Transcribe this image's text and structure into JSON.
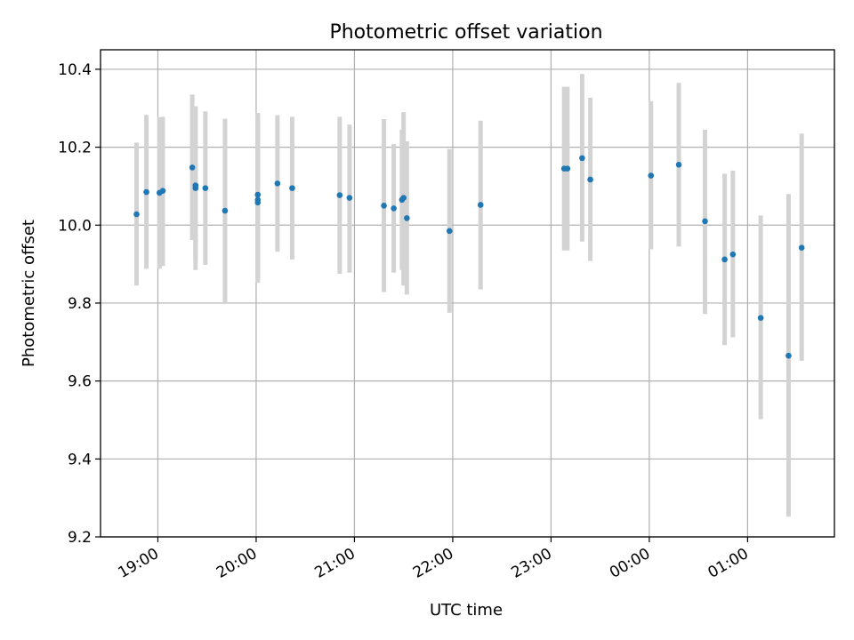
{
  "chart_data": {
    "type": "scatter",
    "title": "Photometric offset variation",
    "xlabel": "UTC time",
    "ylabel": "Photometric offset",
    "ylim": [
      9.2,
      10.45
    ],
    "xlim": [
      "18:25",
      "25:53"
    ],
    "grid": true,
    "x_axis_format": "HH:MM (UTC, continuing past midnight)",
    "x_ticks": [
      "19:00",
      "20:00",
      "21:00",
      "22:00",
      "23:00",
      "00:00",
      "01:00"
    ],
    "y_ticks": [
      "9.2",
      "9.4",
      "9.6",
      "9.8",
      "10.0",
      "10.2",
      "10.4"
    ],
    "colors": {
      "points": "#1f77b4",
      "error_bars": "#d3d3d3"
    },
    "points": [
      {
        "time": "18:47",
        "y": 10.028,
        "lo": 9.845,
        "hi": 10.212
      },
      {
        "time": "18:53",
        "y": 10.085,
        "lo": 9.888,
        "hi": 10.283
      },
      {
        "time": "19:01",
        "y": 10.083,
        "lo": 9.888,
        "hi": 10.277
      },
      {
        "time": "19:03",
        "y": 10.088,
        "lo": 9.895,
        "hi": 10.278
      },
      {
        "time": "19:21",
        "y": 10.148,
        "lo": 9.962,
        "hi": 10.335
      },
      {
        "time": "19:23",
        "y": 10.102,
        "lo": 9.915,
        "hi": 10.305
      },
      {
        "time": "19:23",
        "y": 10.095,
        "lo": 9.885,
        "hi": 10.305
      },
      {
        "time": "19:29",
        "y": 10.095,
        "lo": 9.898,
        "hi": 10.292
      },
      {
        "time": "19:41",
        "y": 10.037,
        "lo": 9.8,
        "hi": 10.273
      },
      {
        "time": "20:01",
        "y": 10.078,
        "lo": 9.852,
        "hi": 10.288
      },
      {
        "time": "20:01",
        "y": 10.058,
        "lo": 9.862,
        "hi": 10.285
      },
      {
        "time": "20:01",
        "y": 10.065,
        "lo": 9.87,
        "hi": 10.28
      },
      {
        "time": "20:13",
        "y": 10.107,
        "lo": 9.932,
        "hi": 10.282
      },
      {
        "time": "20:22",
        "y": 10.095,
        "lo": 9.912,
        "hi": 10.278
      },
      {
        "time": "20:51",
        "y": 10.077,
        "lo": 9.875,
        "hi": 10.278
      },
      {
        "time": "20:57",
        "y": 10.07,
        "lo": 9.878,
        "hi": 10.258
      },
      {
        "time": "21:18",
        "y": 10.05,
        "lo": 9.828,
        "hi": 10.272
      },
      {
        "time": "21:24",
        "y": 10.043,
        "lo": 9.878,
        "hi": 10.208
      },
      {
        "time": "21:29",
        "y": 10.065,
        "lo": 9.885,
        "hi": 10.245
      },
      {
        "time": "21:30",
        "y": 10.07,
        "lo": 9.845,
        "hi": 10.29
      },
      {
        "time": "21:32",
        "y": 10.018,
        "lo": 9.822,
        "hi": 10.215
      },
      {
        "time": "21:58",
        "y": 9.985,
        "lo": 9.775,
        "hi": 10.195
      },
      {
        "time": "22:17",
        "y": 10.052,
        "lo": 9.835,
        "hi": 10.268
      },
      {
        "time": "23:08",
        "y": 10.145,
        "lo": 9.935,
        "hi": 10.355
      },
      {
        "time": "23:10",
        "y": 10.145,
        "lo": 9.935,
        "hi": 10.355
      },
      {
        "time": "23:19",
        "y": 10.172,
        "lo": 9.958,
        "hi": 10.388
      },
      {
        "time": "23:24",
        "y": 10.117,
        "lo": 9.908,
        "hi": 10.327
      },
      {
        "time": "00:01",
        "y": 10.127,
        "lo": 9.938,
        "hi": 10.318
      },
      {
        "time": "00:18",
        "y": 10.155,
        "lo": 9.945,
        "hi": 10.365
      },
      {
        "time": "00:34",
        "y": 10.01,
        "lo": 9.772,
        "hi": 10.245
      },
      {
        "time": "00:46",
        "y": 9.912,
        "lo": 9.692,
        "hi": 10.132
      },
      {
        "time": "00:51",
        "y": 9.925,
        "lo": 9.712,
        "hi": 10.14
      },
      {
        "time": "01:08",
        "y": 9.762,
        "lo": 9.502,
        "hi": 10.025
      },
      {
        "time": "01:25",
        "y": 9.665,
        "lo": 9.252,
        "hi": 10.08
      },
      {
        "time": "01:33",
        "y": 9.942,
        "lo": 9.652,
        "hi": 10.235
      }
    ]
  }
}
